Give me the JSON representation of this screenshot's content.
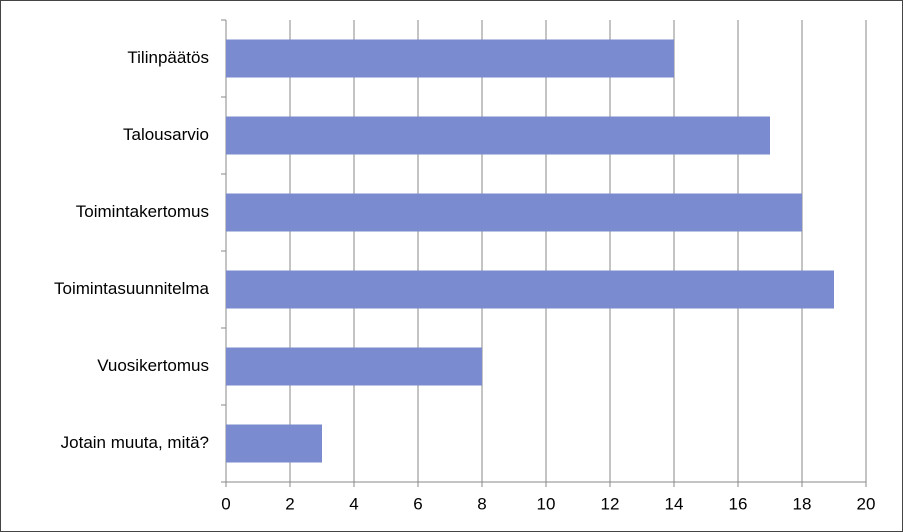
{
  "chart_data": {
    "type": "bar",
    "orientation": "horizontal",
    "categories": [
      "Tilinpäätös",
      "Talousarvio",
      "Toimintakertomus",
      "Toimintasuunnitelma",
      "Vuosikertomus",
      "Jotain muuta, mitä?"
    ],
    "values": [
      14,
      17,
      18,
      19,
      8,
      3
    ],
    "color": "#7b8bcf",
    "xlim": [
      0,
      20
    ],
    "xticks": [
      0,
      2,
      4,
      6,
      8,
      10,
      12,
      14,
      16,
      18,
      20
    ],
    "grid": true
  }
}
